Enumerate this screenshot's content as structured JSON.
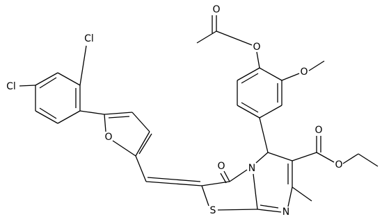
{
  "atoms": [
    "O",
    "O",
    "O",
    "Cl",
    "Cl",
    "O",
    "O",
    "N",
    "S",
    "N",
    "O",
    "O"
  ]
}
